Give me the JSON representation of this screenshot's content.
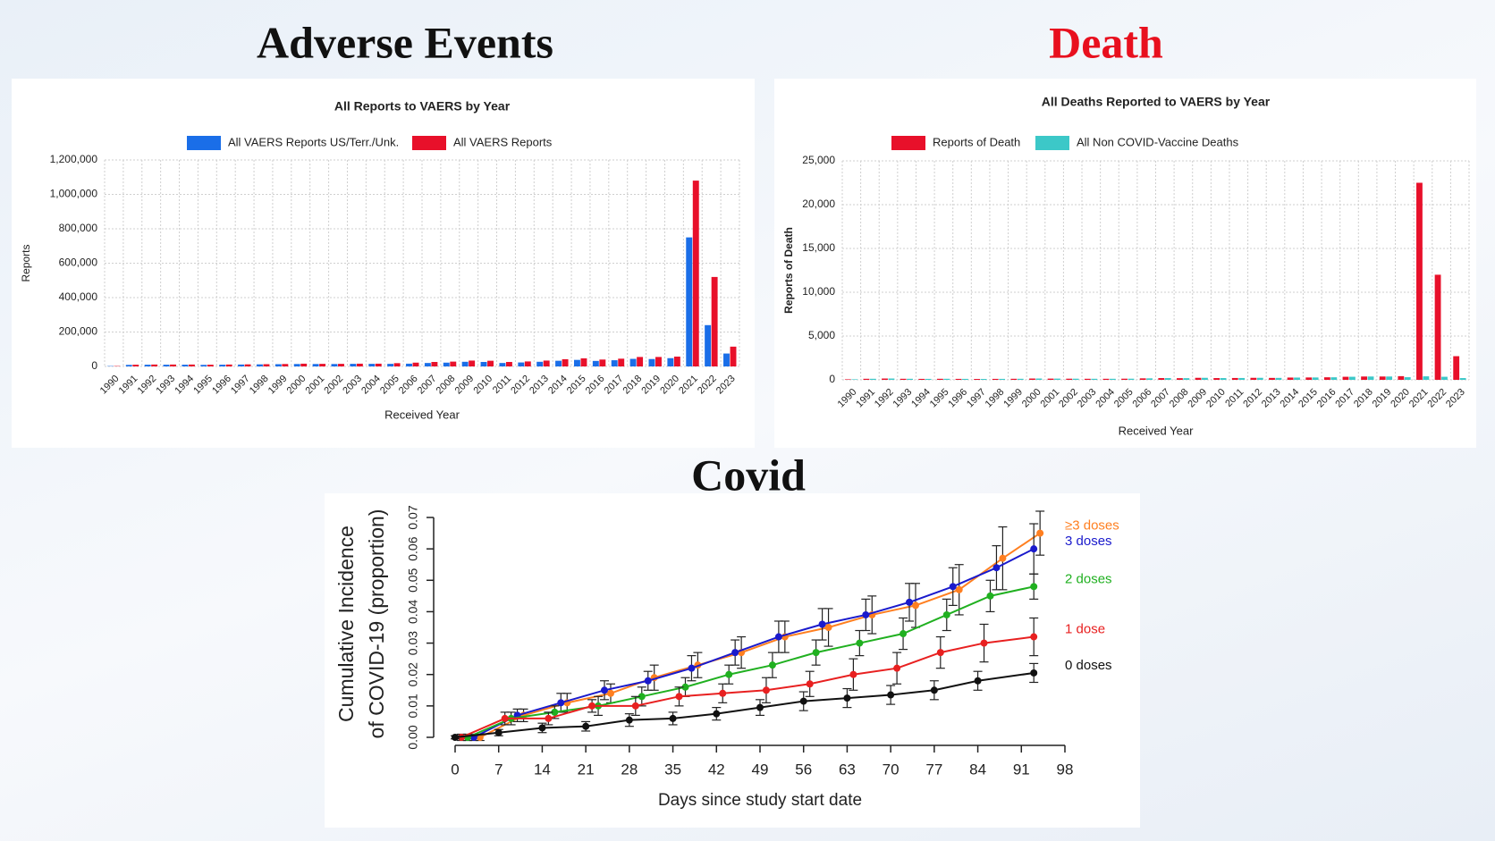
{
  "chart_data": [
    {
      "type": "bar",
      "heading": "Adverse Events",
      "heading_color": "#111111",
      "title": "All Reports to VAERS by Year",
      "xlabel": "Received Year",
      "ylabel": "Reports",
      "categories": [
        "1990",
        "1991",
        "1992",
        "1993",
        "1994",
        "1995",
        "1996",
        "1997",
        "1998",
        "1999",
        "2000",
        "2001",
        "2002",
        "2003",
        "2004",
        "2005",
        "2006",
        "2007",
        "2008",
        "2009",
        "2010",
        "2011",
        "2012",
        "2013",
        "2014",
        "2015",
        "2016",
        "2017",
        "2018",
        "2019",
        "2020",
        "2021",
        "2022",
        "2023"
      ],
      "series": [
        {
          "name": "All VAERS Reports US/Terr./Unk.",
          "color": "#1a6ee8",
          "values": [
            2000,
            9000,
            10000,
            10000,
            10000,
            9000,
            10000,
            11000,
            12000,
            13000,
            14000,
            14000,
            14000,
            15000,
            15000,
            15000,
            16000,
            20000,
            22000,
            27000,
            26000,
            20000,
            23000,
            27000,
            33000,
            38000,
            32000,
            36000,
            44000,
            43000,
            48000,
            750000,
            240000,
            75000
          ]
        },
        {
          "name": "All VAERS Reports",
          "color": "#e8102a",
          "values": [
            2100,
            10000,
            11000,
            11000,
            11000,
            10000,
            11000,
            12000,
            13000,
            14000,
            16000,
            15000,
            15000,
            16000,
            16000,
            19000,
            22000,
            26000,
            28000,
            34000,
            33000,
            26000,
            29000,
            34000,
            42000,
            47000,
            40000,
            45000,
            55000,
            55000,
            57000,
            1080000,
            520000,
            115000
          ]
        }
      ],
      "ylim": [
        0,
        1200000
      ],
      "yticks": [
        0,
        {
          "value": 200000,
          "label": "200,000"
        },
        {
          "value": 400000,
          "label": "400,000"
        },
        {
          "value": 600000,
          "label": "600,000"
        },
        {
          "value": 800000,
          "label": "800,000"
        },
        {
          "value": 1000000,
          "label": "1,000,000"
        },
        {
          "value": 1200000,
          "label": "1,200,000"
        }
      ],
      "grid": true
    },
    {
      "type": "bar",
      "heading": "Death",
      "heading_color": "#e8101e",
      "title": "All Deaths Reported to VAERS by Year",
      "xlabel": "Received Year",
      "ylabel": "Reports of Death",
      "categories": [
        "1990",
        "1991",
        "1992",
        "1993",
        "1994",
        "1995",
        "1996",
        "1997",
        "1998",
        "1999",
        "2000",
        "2001",
        "2002",
        "2003",
        "2004",
        "2005",
        "2006",
        "2007",
        "2008",
        "2009",
        "2010",
        "2011",
        "2012",
        "2013",
        "2014",
        "2015",
        "2016",
        "2017",
        "2018",
        "2019",
        "2020",
        "2021",
        "2022",
        "2023"
      ],
      "series": [
        {
          "name": "Reports of Death",
          "color": "#e8102a",
          "values": [
            60,
            120,
            150,
            120,
            110,
            120,
            110,
            100,
            110,
            120,
            150,
            140,
            130,
            120,
            120,
            130,
            170,
            200,
            190,
            230,
            200,
            210,
            230,
            220,
            260,
            270,
            290,
            350,
            380,
            380,
            420,
            22500,
            12000,
            2700
          ]
        },
        {
          "name": "All Non COVID-Vaccine Deaths",
          "color": "#3cc8c8",
          "values": [
            60,
            120,
            150,
            120,
            110,
            120,
            110,
            100,
            110,
            120,
            150,
            140,
            130,
            120,
            120,
            130,
            170,
            200,
            190,
            230,
            200,
            210,
            230,
            220,
            260,
            270,
            290,
            350,
            380,
            380,
            300,
            400,
            350,
            200
          ]
        }
      ],
      "ylim": [
        0,
        25000
      ],
      "yticks": [
        0,
        {
          "value": 5000,
          "label": "5,000"
        },
        {
          "value": 10000,
          "label": "10,000"
        },
        {
          "value": 15000,
          "label": "15,000"
        },
        {
          "value": 20000,
          "label": "20,000"
        },
        {
          "value": 25000,
          "label": "25,000"
        }
      ],
      "grid": true
    },
    {
      "type": "line",
      "heading": "Covid",
      "heading_color": "#111111",
      "xlabel": "Days since study start date",
      "ylabel": [
        "Cumulative Incidence",
        "of COVID-19 (proportion)"
      ],
      "series": [
        {
          "name": "≥3 doses",
          "color": "#ff7f20",
          "x": [
            4,
            11,
            18,
            25,
            32,
            39,
            46,
            53,
            60,
            67,
            74,
            81,
            88,
            94
          ],
          "values": [
            0,
            0.007,
            0.011,
            0.014,
            0.019,
            0.023,
            0.027,
            0.032,
            0.035,
            0.039,
            0.042,
            0.047,
            0.057,
            0.065
          ],
          "errors": [
            0.001,
            0.002,
            0.003,
            0.003,
            0.004,
            0.004,
            0.005,
            0.005,
            0.006,
            0.006,
            0.007,
            0.008,
            0.01,
            0.007
          ]
        },
        {
          "name": "3 doses",
          "color": "#1a1acc",
          "x": [
            3,
            10,
            17,
            24,
            31,
            38,
            45,
            52,
            59,
            66,
            73,
            80,
            87,
            93
          ],
          "values": [
            0,
            0.007,
            0.011,
            0.015,
            0.018,
            0.022,
            0.027,
            0.032,
            0.036,
            0.039,
            0.043,
            0.048,
            0.054,
            0.06
          ],
          "errors": [
            0.001,
            0.002,
            0.003,
            0.003,
            0.003,
            0.004,
            0.004,
            0.005,
            0.005,
            0.005,
            0.006,
            0.006,
            0.007,
            0.008
          ]
        },
        {
          "name": "2 doses",
          "color": "#20b020",
          "x": [
            2,
            9,
            16,
            23,
            30,
            37,
            44,
            51,
            58,
            65,
            72,
            79,
            86,
            93
          ],
          "values": [
            0,
            0.006,
            0.008,
            0.01,
            0.013,
            0.016,
            0.02,
            0.023,
            0.027,
            0.03,
            0.033,
            0.039,
            0.045,
            0.048
          ],
          "errors": [
            0.001,
            0.002,
            0.002,
            0.003,
            0.003,
            0.003,
            0.003,
            0.004,
            0.004,
            0.004,
            0.005,
            0.005,
            0.005,
            0.004
          ]
        },
        {
          "name": "1 dose",
          "color": "#e82020",
          "x": [
            1,
            8,
            15,
            22,
            29,
            36,
            43,
            50,
            57,
            64,
            71,
            78,
            85,
            93
          ],
          "values": [
            0,
            0.006,
            0.006,
            0.01,
            0.01,
            0.013,
            0.014,
            0.015,
            0.017,
            0.02,
            0.022,
            0.027,
            0.03,
            0.032
          ],
          "errors": [
            0.001,
            0.002,
            0.002,
            0.002,
            0.003,
            0.003,
            0.003,
            0.004,
            0.004,
            0.005,
            0.005,
            0.005,
            0.006,
            0.006
          ]
        },
        {
          "name": "0 doses",
          "color": "#111111",
          "x": [
            0,
            7,
            14,
            21,
            28,
            35,
            42,
            49,
            56,
            63,
            70,
            77,
            84,
            93
          ],
          "values": [
            0,
            0.0015,
            0.003,
            0.0035,
            0.0055,
            0.006,
            0.0075,
            0.0095,
            0.0115,
            0.0125,
            0.0135,
            0.015,
            0.018,
            0.0205
          ],
          "errors": [
            0.0005,
            0.001,
            0.0015,
            0.0015,
            0.002,
            0.002,
            0.002,
            0.0025,
            0.003,
            0.003,
            0.003,
            0.003,
            0.003,
            0.003
          ]
        }
      ],
      "xlim": [
        0,
        98
      ],
      "xticks": [
        0,
        7,
        14,
        21,
        28,
        35,
        42,
        49,
        56,
        63,
        70,
        77,
        84,
        91,
        98
      ],
      "ylim": [
        0,
        0.07
      ],
      "yticks": [
        {
          "value": 0,
          "label": "0.00"
        },
        {
          "value": 0.01,
          "label": "0.01"
        },
        {
          "value": 0.02,
          "label": "0.02"
        },
        {
          "value": 0.03,
          "label": "0.03"
        },
        {
          "value": 0.04,
          "label": "0.04"
        },
        {
          "value": 0.05,
          "label": "0.05"
        },
        {
          "value": 0.06,
          "label": "0.06"
        },
        {
          "value": 0.07,
          "label": "0.07"
        }
      ]
    }
  ]
}
